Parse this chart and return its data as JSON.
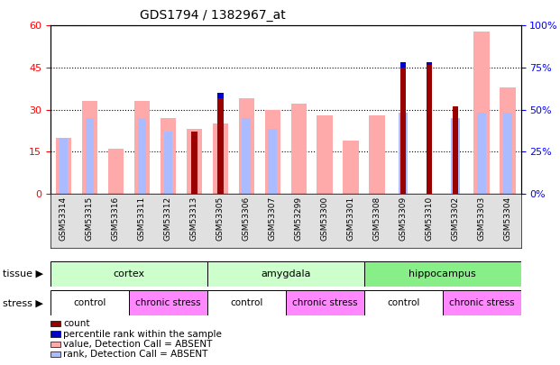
{
  "title": "GDS1794 / 1382967_at",
  "samples": [
    "GSM53314",
    "GSM53315",
    "GSM53316",
    "GSM53311",
    "GSM53312",
    "GSM53313",
    "GSM53305",
    "GSM53306",
    "GSM53307",
    "GSM53299",
    "GSM53300",
    "GSM53301",
    "GSM53308",
    "GSM53309",
    "GSM53310",
    "GSM53302",
    "GSM53303",
    "GSM53304"
  ],
  "count_values": [
    0,
    0,
    0,
    0,
    0,
    22,
    34,
    0,
    0,
    0,
    0,
    0,
    0,
    45,
    46,
    31,
    0,
    0
  ],
  "percentile_values": [
    0,
    0,
    0,
    0,
    0,
    0,
    2,
    0,
    0,
    0,
    0,
    0,
    0,
    2,
    1,
    0,
    0,
    0
  ],
  "absent_value_values": [
    20,
    33,
    16,
    33,
    27,
    23,
    25,
    34,
    30,
    32,
    28,
    19,
    28,
    0,
    0,
    0,
    58,
    38
  ],
  "absent_rank_values": [
    20,
    27,
    0,
    27,
    22,
    0,
    0,
    27,
    23,
    0,
    0,
    0,
    0,
    29,
    0,
    27,
    29,
    29
  ],
  "tissue_groups": [
    {
      "label": "cortex",
      "start": 0,
      "end": 6
    },
    {
      "label": "amygdala",
      "start": 6,
      "end": 12
    },
    {
      "label": "hippocampus",
      "start": 12,
      "end": 18
    }
  ],
  "stress_groups": [
    {
      "label": "control",
      "start": 0,
      "end": 3
    },
    {
      "label": "chronic stress",
      "start": 3,
      "end": 6
    },
    {
      "label": "control",
      "start": 6,
      "end": 9
    },
    {
      "label": "chronic stress",
      "start": 9,
      "end": 12
    },
    {
      "label": "control",
      "start": 12,
      "end": 15
    },
    {
      "label": "chronic stress",
      "start": 15,
      "end": 18
    }
  ],
  "ylim_left": [
    0,
    60
  ],
  "ylim_right": [
    0,
    100
  ],
  "yticks_left": [
    0,
    15,
    30,
    45,
    60
  ],
  "yticks_right": [
    0,
    25,
    50,
    75,
    100
  ],
  "color_count": "#990000",
  "color_percentile": "#0000cc",
  "color_absent_value": "#ffaaaa",
  "color_absent_rank": "#aabbff",
  "tissue_colors": {
    "cortex": "#ccffcc",
    "amygdala": "#ccffcc",
    "hippocampus": "#88ee88"
  },
  "stress_colors": {
    "control": "#ffffff",
    "chronic stress": "#ff88ff"
  },
  "bar_width": 0.6
}
